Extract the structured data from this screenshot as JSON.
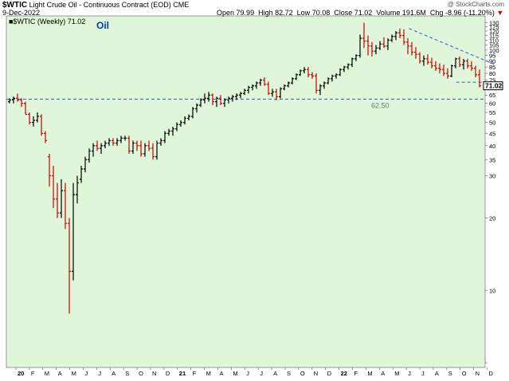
{
  "header": {
    "symbol": "$WTIC",
    "description": "Light Crude Oil - Continuous Contract (EOD)",
    "exchange": "CME",
    "date": "9-Dec-2022",
    "watermark": "@ StockCharts.com",
    "open_label": "Open",
    "open_value": "79.99",
    "high_label": "High",
    "high_value": "82.72",
    "low_label": "Low",
    "low_value": "70.08",
    "close_label": "Close",
    "close_value": "71.02",
    "volume_label": "Volume",
    "volume_value": "191.6M",
    "chg_label": "Chg",
    "chg_value": "-8.96 (-11.20%)",
    "chg_arrow": "▼"
  },
  "colors": {
    "plot_bg": "#dff7d8",
    "up_bar": "#000000",
    "down_bar": "#cc0000",
    "support_line": "#3355dd",
    "price_tag_bg": "#ffffff",
    "down_text": "#cc0000",
    "label_text": "#1133aa"
  },
  "chart_data": {
    "type": "ohlc",
    "legend_text": "■$WTIC (Weekly) 71.02",
    "annotation": "Oil",
    "y_scale": "log",
    "ylim": [
      5,
      130
    ],
    "y_ticks": [
      5,
      10,
      20,
      30,
      35,
      40,
      45,
      50,
      55,
      60,
      65,
      70,
      75,
      80,
      85,
      90,
      95,
      100,
      105,
      110,
      115,
      120,
      125,
      130
    ],
    "y_tick_labels_right": [
      "10",
      "20",
      "30",
      "35",
      "40",
      "45",
      "50",
      "55",
      "60",
      "65",
      "70",
      "75",
      "80",
      "85",
      "90",
      "95",
      "100",
      "105",
      "110",
      "115",
      "120",
      "125",
      "130"
    ],
    "x_ticks": [
      {
        "label": "20",
        "t": 0.0,
        "bold": true
      },
      {
        "label": "F",
        "t": 1
      },
      {
        "label": "M",
        "t": 2
      },
      {
        "label": "A",
        "t": 3
      },
      {
        "label": "M",
        "t": 4
      },
      {
        "label": "J",
        "t": 5
      },
      {
        "label": "J",
        "t": 6
      },
      {
        "label": "A",
        "t": 7
      },
      {
        "label": "S",
        "t": 8
      },
      {
        "label": "O",
        "t": 9
      },
      {
        "label": "N",
        "t": 10
      },
      {
        "label": "D",
        "t": 11
      },
      {
        "label": "21",
        "t": 12,
        "bold": true
      },
      {
        "label": "F",
        "t": 13
      },
      {
        "label": "M",
        "t": 14
      },
      {
        "label": "A",
        "t": 15
      },
      {
        "label": "M",
        "t": 16
      },
      {
        "label": "J",
        "t": 17
      },
      {
        "label": "J",
        "t": 18
      },
      {
        "label": "A",
        "t": 19
      },
      {
        "label": "S",
        "t": 20
      },
      {
        "label": "O",
        "t": 21
      },
      {
        "label": "N",
        "t": 22
      },
      {
        "label": "D",
        "t": 23
      },
      {
        "label": "22",
        "t": 24,
        "bold": true
      },
      {
        "label": "F",
        "t": 25
      },
      {
        "label": "M",
        "t": 26
      },
      {
        "label": "A",
        "t": 27
      },
      {
        "label": "M",
        "t": 28
      },
      {
        "label": "J",
        "t": 29
      },
      {
        "label": "J",
        "t": 30
      },
      {
        "label": "A",
        "t": 31
      },
      {
        "label": "S",
        "t": 32
      },
      {
        "label": "O",
        "t": 33
      },
      {
        "label": "N",
        "t": 34
      },
      {
        "label": "D",
        "t": 35
      }
    ],
    "support_level": 62.5,
    "support_label": "62.50",
    "last_price": 71.02,
    "last_price_label": "71.02",
    "trendline": {
      "from": {
        "t": 29.2,
        "v": 123
      },
      "to": {
        "t": 35.6,
        "v": 87
      }
    },
    "short_support": {
      "from": {
        "t": 32.7,
        "v": 73.5
      },
      "to": {
        "t": 35.4,
        "v": 73.5
      }
    },
    "bars": [
      [
        61,
        63,
        60,
        62
      ],
      [
        62,
        64,
        60,
        63
      ],
      [
        63,
        66,
        61,
        62
      ],
      [
        62,
        63,
        58,
        60
      ],
      [
        60,
        61,
        54,
        54
      ],
      [
        54,
        55,
        49,
        50
      ],
      [
        50,
        53,
        48,
        51
      ],
      [
        51,
        55,
        50,
        53
      ],
      [
        53,
        54,
        44,
        45
      ],
      [
        45,
        46,
        41,
        42
      ],
      [
        36,
        37,
        27,
        30
      ],
      [
        30,
        33,
        22,
        24
      ],
      [
        24,
        28,
        20,
        21
      ],
      [
        21,
        29,
        20,
        26
      ],
      [
        26,
        28,
        18,
        19
      ],
      [
        19,
        20,
        8,
        12
      ],
      [
        12,
        28,
        11,
        25
      ],
      [
        25,
        30,
        23,
        28
      ],
      [
        29,
        33,
        28,
        32
      ],
      [
        32,
        36,
        31,
        35
      ],
      [
        35,
        39,
        34,
        38
      ],
      [
        38,
        41,
        36,
        40
      ],
      [
        40,
        42,
        38,
        39
      ],
      [
        39,
        41,
        37,
        40
      ],
      [
        40,
        42,
        39,
        41
      ],
      [
        41,
        43,
        40,
        42
      ],
      [
        42,
        43,
        40,
        41
      ],
      [
        41,
        43,
        40,
        42
      ],
      [
        42,
        44,
        41,
        43
      ],
      [
        43,
        44,
        42,
        43
      ],
      [
        43,
        44,
        37,
        38
      ],
      [
        38,
        42,
        37,
        41
      ],
      [
        41,
        42,
        38,
        40
      ],
      [
        40,
        42,
        36,
        37
      ],
      [
        37,
        41,
        36,
        40
      ],
      [
        40,
        42,
        38,
        39
      ],
      [
        39,
        41,
        35,
        36
      ],
      [
        36,
        42,
        35,
        41
      ],
      [
        41,
        43,
        40,
        42
      ],
      [
        42,
        46,
        41,
        45
      ],
      [
        45,
        47,
        44,
        46
      ],
      [
        46,
        48,
        44,
        47
      ],
      [
        47,
        50,
        46,
        49
      ],
      [
        49,
        51,
        48,
        50
      ],
      [
        50,
        53,
        49,
        52
      ],
      [
        52,
        54,
        51,
        53
      ],
      [
        53,
        58,
        52,
        57
      ],
      [
        57,
        60,
        55,
        59
      ],
      [
        59,
        63,
        58,
        62
      ],
      [
        62,
        66,
        60,
        63
      ],
      [
        63,
        67,
        61,
        65
      ],
      [
        65,
        66,
        59,
        61
      ],
      [
        61,
        64,
        58,
        63
      ],
      [
        63,
        65,
        59,
        60
      ],
      [
        60,
        63,
        58,
        62
      ],
      [
        62,
        64,
        60,
        63
      ],
      [
        63,
        65,
        61,
        64
      ],
      [
        64,
        66,
        62,
        65
      ],
      [
        65,
        67,
        63,
        66
      ],
      [
        66,
        69,
        65,
        68
      ],
      [
        68,
        71,
        66,
        70
      ],
      [
        70,
        72,
        68,
        71
      ],
      [
        71,
        74,
        69,
        73
      ],
      [
        73,
        76,
        71,
        75
      ],
      [
        75,
        77,
        71,
        72
      ],
      [
        72,
        74,
        65,
        66
      ],
      [
        66,
        69,
        64,
        67
      ],
      [
        67,
        69,
        62,
        64
      ],
      [
        64,
        70,
        63,
        69
      ],
      [
        69,
        72,
        68,
        71
      ],
      [
        71,
        74,
        70,
        73
      ],
      [
        73,
        77,
        72,
        76
      ],
      [
        76,
        80,
        75,
        79
      ],
      [
        79,
        83,
        78,
        82
      ],
      [
        82,
        85,
        80,
        83
      ],
      [
        83,
        85,
        77,
        79
      ],
      [
        79,
        81,
        76,
        78
      ],
      [
        78,
        80,
        66,
        68
      ],
      [
        68,
        72,
        65,
        71
      ],
      [
        71,
        74,
        69,
        73
      ],
      [
        73,
        77,
        72,
        76
      ],
      [
        76,
        79,
        74,
        78
      ],
      [
        78,
        80,
        76,
        79
      ],
      [
        79,
        84,
        78,
        83
      ],
      [
        83,
        86,
        81,
        85
      ],
      [
        85,
        88,
        83,
        87
      ],
      [
        87,
        93,
        85,
        92
      ],
      [
        92,
        96,
        90,
        95
      ],
      [
        95,
        116,
        93,
        112
      ],
      [
        112,
        130,
        102,
        109
      ],
      [
        109,
        115,
        95,
        104
      ],
      [
        104,
        108,
        94,
        99
      ],
      [
        99,
        105,
        96,
        102
      ],
      [
        102,
        109,
        100,
        106
      ],
      [
        106,
        113,
        102,
        104
      ],
      [
        104,
        112,
        100,
        110
      ],
      [
        110,
        116,
        108,
        114
      ],
      [
        114,
        120,
        110,
        118
      ],
      [
        118,
        123,
        112,
        115
      ],
      [
        115,
        122,
        105,
        108
      ],
      [
        108,
        112,
        96,
        104
      ],
      [
        104,
        108,
        95,
        98
      ],
      [
        98,
        103,
        92,
        96
      ],
      [
        96,
        98,
        88,
        90
      ],
      [
        90,
        95,
        86,
        92
      ],
      [
        92,
        96,
        87,
        89
      ],
      [
        89,
        93,
        84,
        86
      ],
      [
        86,
        90,
        82,
        84
      ],
      [
        84,
        88,
        80,
        83
      ],
      [
        83,
        87,
        78,
        80
      ],
      [
        80,
        84,
        76,
        78
      ],
      [
        78,
        87,
        77,
        86
      ],
      [
        86,
        93,
        84,
        92
      ],
      [
        92,
        94,
        85,
        87
      ],
      [
        87,
        92,
        83,
        90
      ],
      [
        90,
        92,
        84,
        86
      ],
      [
        86,
        90,
        82,
        84
      ],
      [
        84,
        86,
        77,
        79
      ],
      [
        79,
        83,
        70,
        71
      ]
    ]
  }
}
